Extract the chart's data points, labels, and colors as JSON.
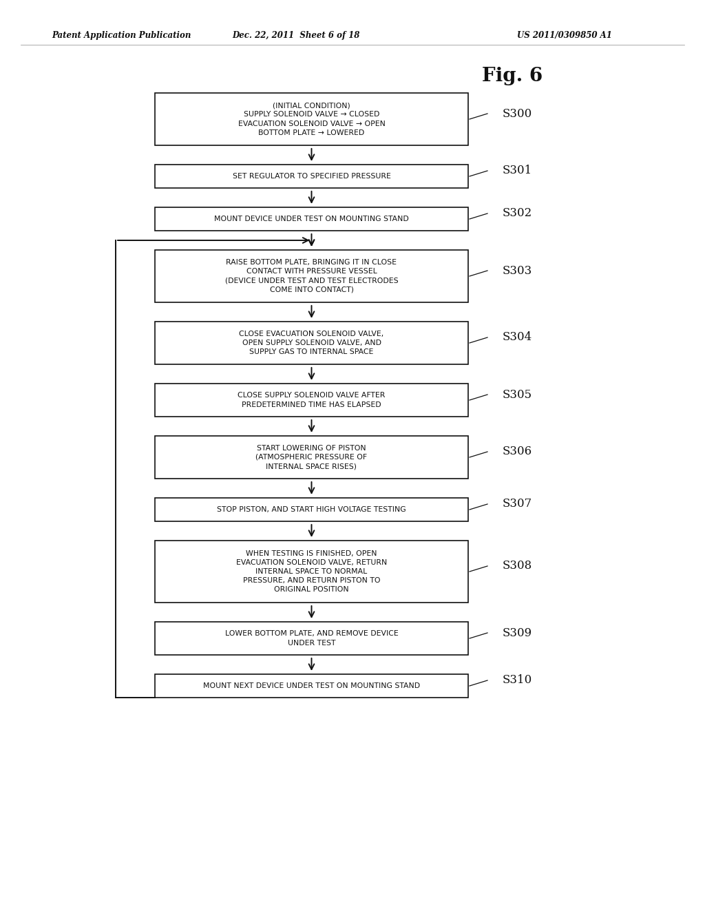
{
  "title": "Fig. 6",
  "header_left": "Patent Application Publication",
  "header_center": "Dec. 22, 2011  Sheet 6 of 18",
  "header_right": "US 2011/0309850 A1",
  "steps": [
    {
      "id": "S300",
      "text": "(INITIAL CONDITION)\nSUPPLY SOLENOID VALVE → CLOSED\nEVACUATION SOLENOID VALVE → OPEN\nBOTTOM PLATE → LOWERED",
      "nlines": 4
    },
    {
      "id": "S301",
      "text": "SET REGULATOR TO SPECIFIED PRESSURE",
      "nlines": 1
    },
    {
      "id": "S302",
      "text": "MOUNT DEVICE UNDER TEST ON MOUNTING STAND",
      "nlines": 1
    },
    {
      "id": "S303",
      "text": "RAISE BOTTOM PLATE, BRINGING IT IN CLOSE\nCONTACT WITH PRESSURE VESSEL\n(DEVICE UNDER TEST AND TEST ELECTRODES\nCOME INTO CONTACT)",
      "nlines": 4
    },
    {
      "id": "S304",
      "text": "CLOSE EVACUATION SOLENOID VALVE,\nOPEN SUPPLY SOLENOID VALVE, AND\nSUPPLY GAS TO INTERNAL SPACE",
      "nlines": 3
    },
    {
      "id": "S305",
      "text": "CLOSE SUPPLY SOLENOID VALVE AFTER\nPREDETERMINED TIME HAS ELAPSED",
      "nlines": 2
    },
    {
      "id": "S306",
      "text": "START LOWERING OF PISTON\n(ATMOSPHERIC PRESSURE OF\nINTERNAL SPACE RISES)",
      "nlines": 3
    },
    {
      "id": "S307",
      "text": "STOP PISTON, AND START HIGH VOLTAGE TESTING",
      "nlines": 1
    },
    {
      "id": "S308",
      "text": "WHEN TESTING IS FINISHED, OPEN\nEVACUATION SOLENOID VALVE, RETURN\nINTERNAL SPACE TO NORMAL\nPRESSURE, AND RETURN PISTON TO\nORIGINAL POSITION",
      "nlines": 5
    },
    {
      "id": "S309",
      "text": "LOWER BOTTOM PLATE, AND REMOVE DEVICE\nUNDER TEST",
      "nlines": 2
    },
    {
      "id": "S310",
      "text": "MOUNT NEXT DEVICE UNDER TEST ON MOUNTING STAND",
      "nlines": 1
    }
  ],
  "bg_color": "#ffffff",
  "box_fc": "#ffffff",
  "box_ec": "#111111",
  "text_color": "#111111",
  "arrow_color": "#111111"
}
